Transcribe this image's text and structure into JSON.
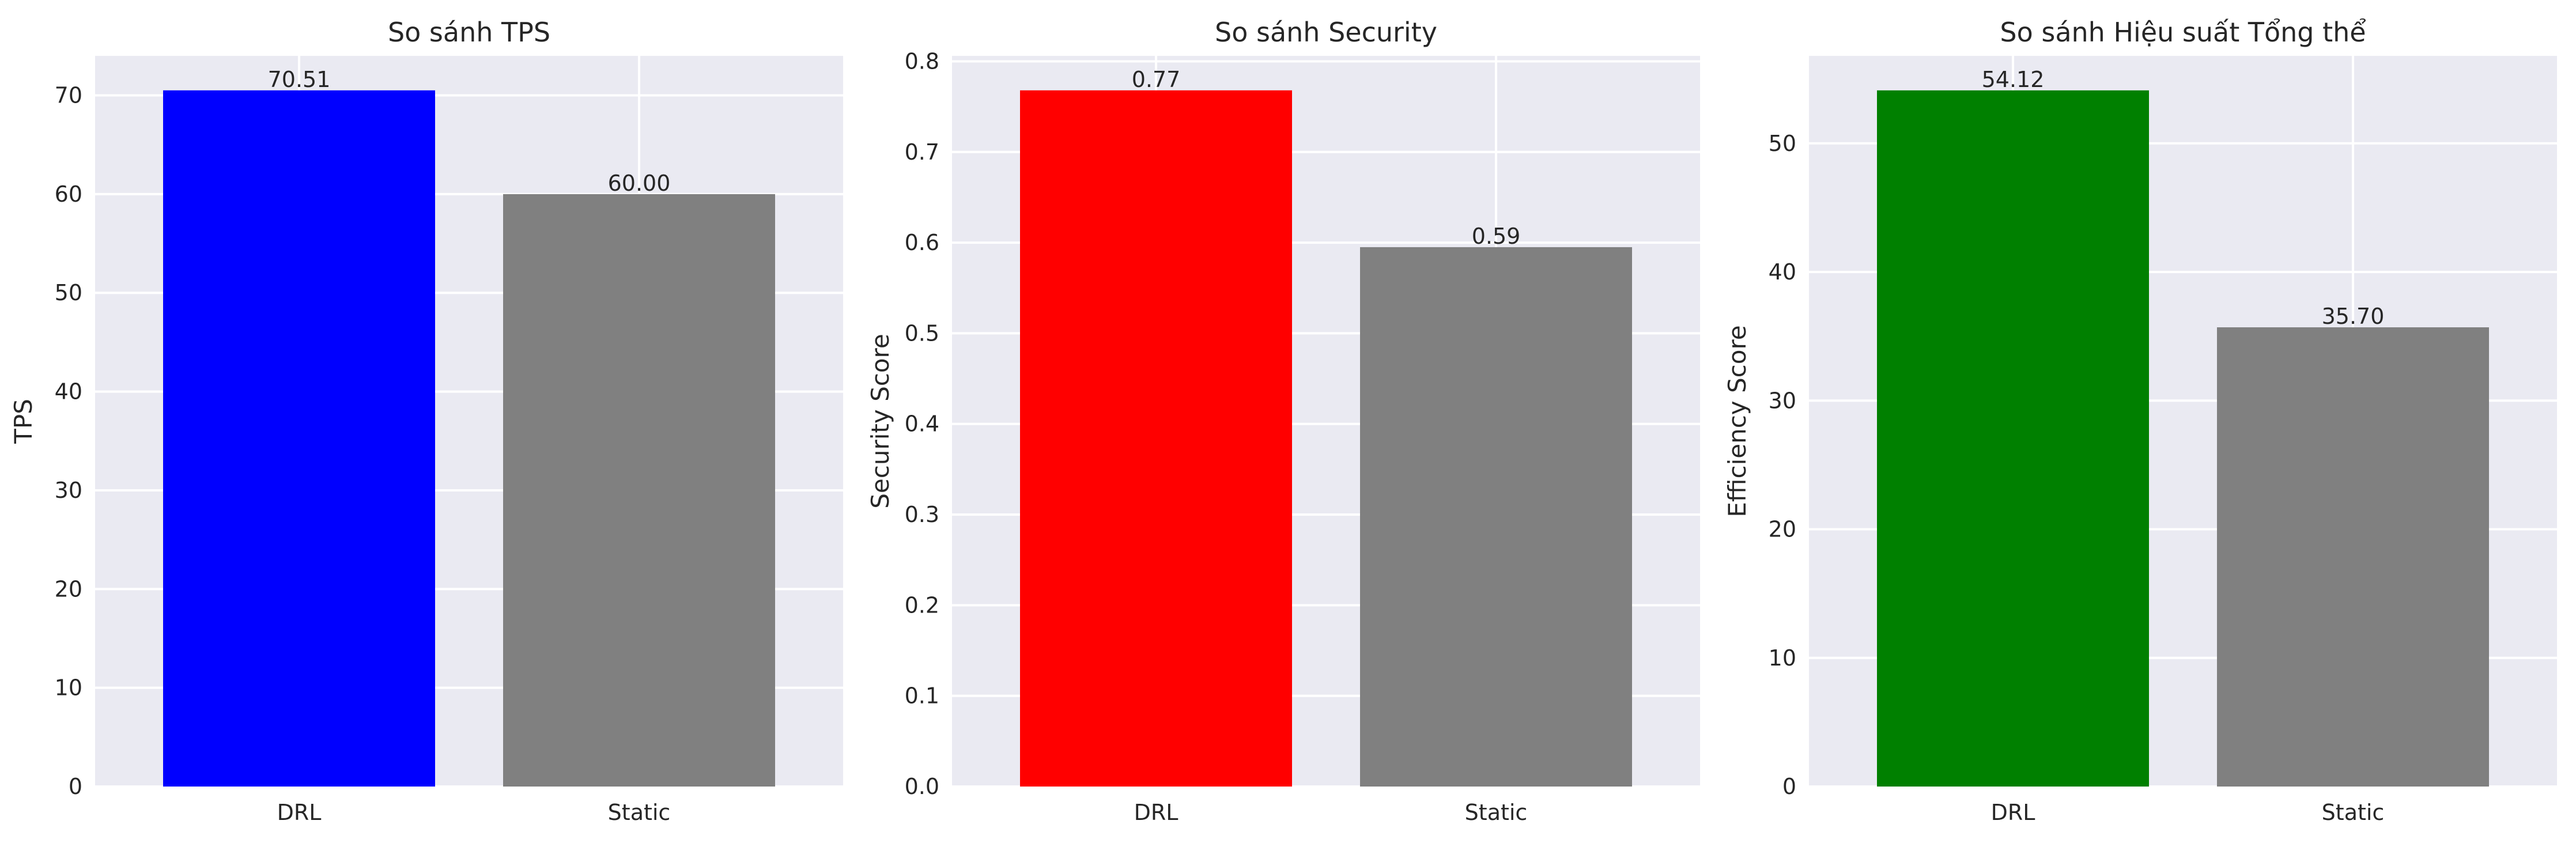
{
  "chart_data": [
    {
      "type": "bar",
      "title": "So sánh TPS",
      "xlabel": "",
      "ylabel": "TPS",
      "categories": [
        "DRL",
        "Static"
      ],
      "values": [
        70.51,
        60.0
      ],
      "value_labels": [
        "70.51",
        "60.00"
      ],
      "colors": [
        "#0000ff",
        "#808080"
      ],
      "ylim": [
        0,
        74
      ],
      "yticks": [
        0,
        10,
        20,
        30,
        40,
        50,
        60,
        70
      ],
      "ytick_labels": [
        "0",
        "10",
        "20",
        "30",
        "40",
        "50",
        "60",
        "70"
      ],
      "grid": true
    },
    {
      "type": "bar",
      "title": "So sánh Security",
      "xlabel": "",
      "ylabel": "Security Score",
      "categories": [
        "DRL",
        "Static"
      ],
      "values": [
        0.768,
        0.595
      ],
      "value_labels": [
        "0.77",
        "0.59"
      ],
      "colors": [
        "#ff0000",
        "#808080"
      ],
      "ylim": [
        0,
        0.806
      ],
      "yticks": [
        0,
        0.1,
        0.2,
        0.3,
        0.4,
        0.5,
        0.6,
        0.7,
        0.8
      ],
      "ytick_labels": [
        "0.0",
        "0.1",
        "0.2",
        "0.3",
        "0.4",
        "0.5",
        "0.6",
        "0.7",
        "0.8"
      ],
      "grid": true
    },
    {
      "type": "bar",
      "title": "So sánh Hiệu suất Tổng thể",
      "xlabel": "",
      "ylabel": "Efficiency Score",
      "categories": [
        "DRL",
        "Static"
      ],
      "values": [
        54.12,
        35.7
      ],
      "value_labels": [
        "54.12",
        "35.70"
      ],
      "colors": [
        "#008000",
        "#808080"
      ],
      "ylim": [
        0,
        56.8
      ],
      "yticks": [
        0,
        10,
        20,
        30,
        40,
        50
      ],
      "ytick_labels": [
        "0",
        "10",
        "20",
        "30",
        "40",
        "50"
      ],
      "grid": true
    }
  ]
}
